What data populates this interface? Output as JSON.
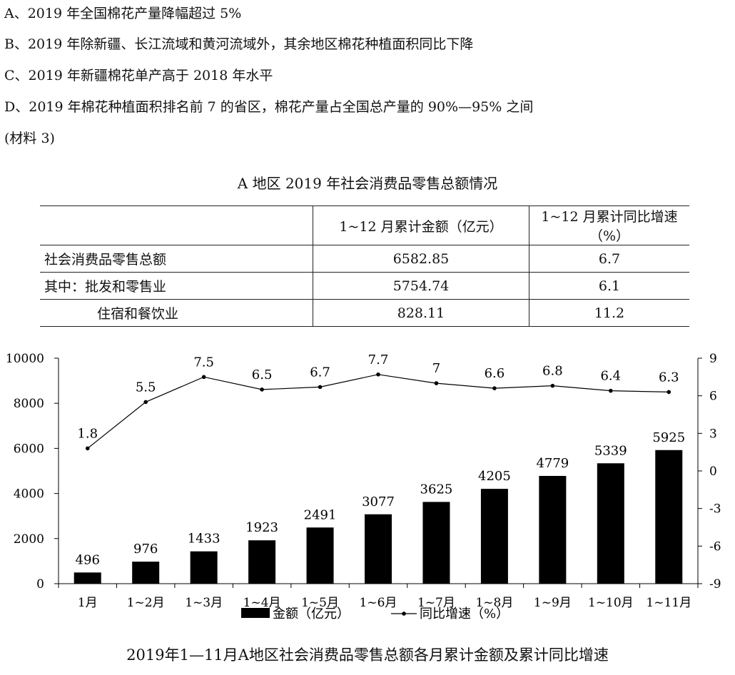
{
  "questions": [
    "A、2019 年全国棉花产量降幅超过 5%",
    "B、2019 年除新疆、长江流域和黄河流域外，其余地区棉花种植面积同比下降",
    "C、2019 年新疆棉花单产高于 2018 年水平",
    "D、2019 年棉花种植面积排名前 7 的省区，棉花产量占全国总产量的 90%—95% 之间",
    "(材料 3)"
  ],
  "table": {
    "title": "A 地区 2019 年社会消费品零售总额情况",
    "headers": [
      "",
      "1~12 月累计金额（亿元）",
      "1~12 月累计同比增速（%）"
    ],
    "rows": [
      {
        "label": "社会消费品零售总额",
        "amount": "6582.85",
        "growth": "6.7"
      },
      {
        "label": "其中：批发和零售业",
        "amount": "5754.74",
        "growth": "6.1"
      },
      {
        "label": "住宿和餐饮业",
        "amount": "828.11",
        "growth": "11.2"
      }
    ]
  },
  "chart_data": {
    "type": "bar",
    "title": "2019年1—11月A地区社会消费品零售总额各月累计金额及累计同比增速",
    "categories": [
      "1月",
      "1~2月",
      "1~3月",
      "1~4月",
      "1~5月",
      "1~6月",
      "1~7月",
      "1~8月",
      "1~9月",
      "1~10月",
      "1~11月"
    ],
    "series": [
      {
        "name": "金额（亿元）",
        "type": "bar",
        "axis": "left",
        "color": "#000000",
        "values": [
          496,
          976,
          1433,
          1923,
          2491,
          3077,
          3625,
          4205,
          4779,
          5339,
          5925
        ]
      },
      {
        "name": "同比增速（%）",
        "type": "line",
        "axis": "right",
        "color": "#000000",
        "values": [
          1.8,
          5.5,
          7.5,
          6.5,
          6.7,
          7.7,
          7,
          6.6,
          6.8,
          6.4,
          6.3
        ]
      }
    ],
    "left_axis": {
      "min": 0,
      "max": 10000,
      "ticks": [
        0,
        2000,
        4000,
        6000,
        8000,
        10000
      ]
    },
    "right_axis": {
      "min": -9,
      "max": 9,
      "ticks": [
        -9,
        -6,
        -3,
        0,
        3,
        6,
        9
      ]
    },
    "grid": false,
    "legend": "bottom"
  }
}
